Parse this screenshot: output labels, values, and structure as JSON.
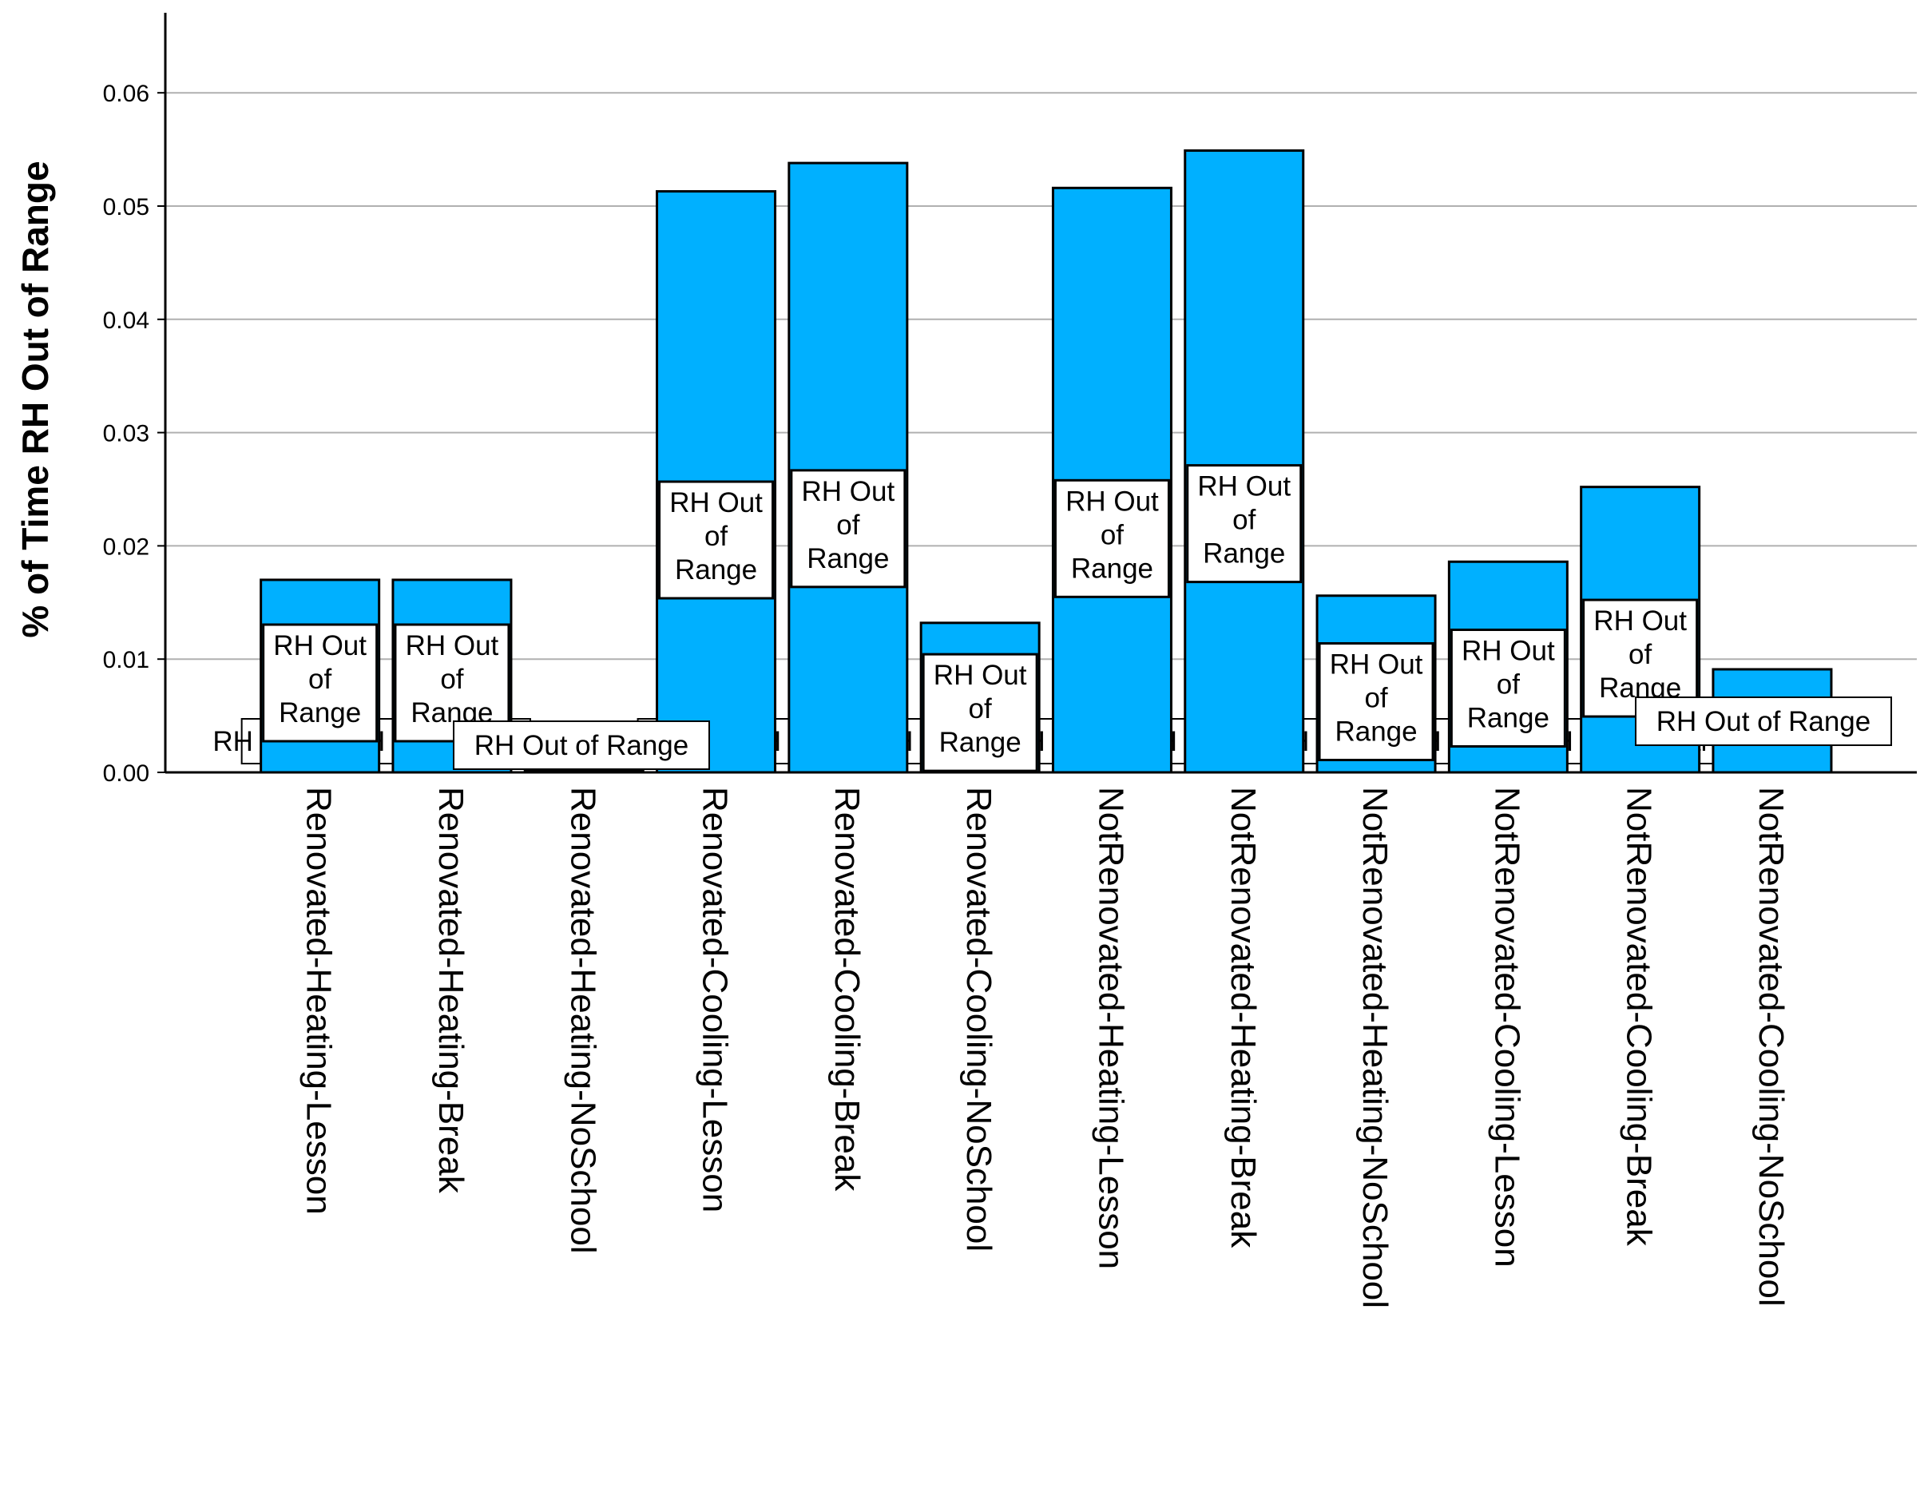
{
  "chart_data": {
    "type": "bar",
    "title": "",
    "xlabel": "",
    "ylabel": "% of Time RH Out of Range",
    "ylim": [
      0,
      0.065
    ],
    "yticks": [
      "0.00",
      "0.01",
      "0.02",
      "0.03",
      "0.04",
      "0.05",
      "0.06"
    ],
    "grid": true,
    "bar_color": "#00b0ff",
    "categories": [
      "Renovated-Heating-Lesson",
      "Renovated-Heating-Break",
      "Renovated-Heating-NoSchool",
      "Renovated-Cooling-Lesson",
      "Renovated-Cooling-Break",
      "Renovated-Cooling-NoSchool",
      "NotRenovated-Heating-Lesson",
      "NotRenovated-Heating-Break",
      "NotRenovated-Heating-NoSchool",
      "NotRenovated-Cooling-Lesson",
      "NotRenovated-Cooling-Break",
      "NotRenovated-Cooling-NoSchool"
    ],
    "values": [
      0.017,
      0.017,
      0.0002,
      0.0513,
      0.0538,
      0.0132,
      0.0516,
      0.0549,
      0.0156,
      0.0186,
      0.0252,
      0.0091
    ],
    "data_label": "RH Out of Range",
    "data_label_wrapped": [
      "RH Out",
      "of",
      "Range"
    ]
  }
}
